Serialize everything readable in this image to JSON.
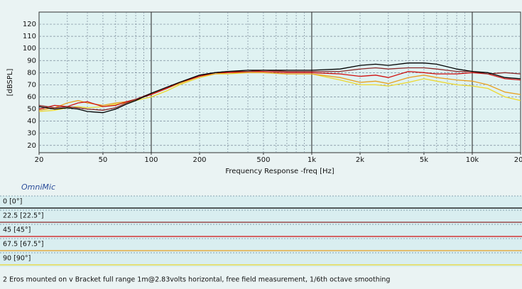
{
  "chart_data": {
    "type": "line",
    "xlabel": "Frequency Response -freq [Hz]",
    "ylabel": "[dBSPL]",
    "watermark": "OmniMic",
    "caption": "2 Eros mounted on v Bracket full range 1m@2.83volts horizontal, free field measurement, 1/6th octave smoothing",
    "xscale": "log",
    "grid": true,
    "xlim": [
      20,
      20000
    ],
    "ylim": [
      14,
      130
    ],
    "xticks": [
      20,
      50,
      100,
      200,
      500,
      {
        "value": 1000,
        "label": "1k"
      },
      {
        "value": 2000,
        "label": "2k"
      },
      {
        "value": 5000,
        "label": "5k"
      },
      {
        "value": 10000,
        "label": "10k"
      },
      {
        "value": 20000,
        "label": "20k"
      }
    ],
    "xmajor": [
      100,
      1000,
      10000
    ],
    "xminor": [
      30,
      40,
      50,
      60,
      70,
      80,
      90,
      200,
      300,
      400,
      500,
      600,
      700,
      800,
      900,
      2000,
      3000,
      4000,
      5000,
      6000,
      7000,
      8000,
      9000
    ],
    "yticks": [
      20,
      30,
      40,
      50,
      60,
      70,
      80,
      90,
      100,
      110,
      120
    ],
    "x": [
      20,
      25,
      30,
      35,
      40,
      50,
      60,
      70,
      80,
      100,
      125,
      150,
      200,
      250,
      300,
      400,
      500,
      700,
      1000,
      1500,
      2000,
      2500,
      3000,
      4000,
      5000,
      6000,
      8000,
      10000,
      12500,
      16000,
      20000
    ],
    "series": [
      {
        "name": "0 [0°]",
        "color": "#000000",
        "values": [
          52,
          50,
          51,
          50,
          48,
          47,
          50,
          54,
          57,
          63,
          68,
          72,
          78,
          80,
          81,
          82,
          82,
          82,
          82,
          83,
          86,
          87,
          86,
          88,
          88,
          87,
          83,
          81,
          80,
          76,
          75
        ]
      },
      {
        "name": "22.5 [22.5°]",
        "color": "#8b2a2a",
        "values": [
          53,
          51,
          52,
          51,
          50,
          49,
          51,
          55,
          58,
          63,
          68,
          72,
          78,
          80,
          81,
          81,
          82,
          81,
          81,
          81,
          83,
          84,
          83,
          84,
          84,
          83,
          81,
          81,
          79,
          80,
          79
        ]
      },
      {
        "name": "45 [45°]",
        "color": "#d01010",
        "values": [
          50,
          53,
          52,
          55,
          56,
          52,
          53,
          56,
          58,
          62,
          67,
          72,
          77,
          80,
          80,
          81,
          81,
          80,
          80,
          79,
          77,
          78,
          76,
          81,
          80,
          79,
          79,
          80,
          79,
          75,
          74
        ]
      },
      {
        "name": "67.5 [67.5°]",
        "color": "#e8a020",
        "values": [
          49,
          51,
          55,
          57,
          55,
          53,
          55,
          56,
          58,
          62,
          67,
          71,
          77,
          79,
          80,
          80,
          80,
          79,
          79,
          76,
          72,
          73,
          71,
          76,
          78,
          76,
          74,
          73,
          70,
          64,
          62
        ]
      },
      {
        "name": "90 [90°]",
        "color": "#ecd830",
        "values": [
          48,
          49,
          51,
          52,
          51,
          52,
          54,
          55,
          57,
          60,
          65,
          70,
          76,
          79,
          79,
          80,
          80,
          79,
          79,
          74,
          70,
          70,
          69,
          72,
          75,
          73,
          70,
          69,
          67,
          60,
          57
        ]
      }
    ]
  }
}
